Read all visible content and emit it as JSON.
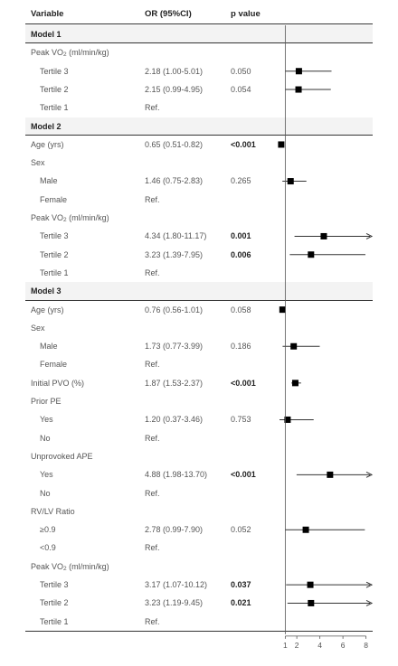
{
  "headers": {
    "variable": "Variable",
    "or": "OR (95%CI)",
    "p": "p value"
  },
  "models": [
    {
      "title": "Model 1",
      "rows": [
        {
          "label": "Peak VO",
          "sub": "2",
          "suffix": " (ml/min/kg)"
        },
        {
          "label": "Tertile 3",
          "indent": true,
          "or": "2.18 (1.00-5.01)",
          "p": "0.050",
          "v": 2.18,
          "lo": 1.0,
          "hi": 5.01
        },
        {
          "label": "Tertile 2",
          "indent": true,
          "or": "2.15 (0.99-4.95)",
          "p": "0.054",
          "v": 2.15,
          "lo": 0.99,
          "hi": 4.95
        },
        {
          "label": "Tertile 1",
          "indent": true,
          "or": "Ref."
        }
      ]
    },
    {
      "title": "Model 2",
      "rows": [
        {
          "label": "Age (yrs)",
          "or": "0.65 (0.51-0.82)",
          "p": "<0.001",
          "sig": true,
          "v": 0.65,
          "lo": 0.51,
          "hi": 0.82
        },
        {
          "label": "Sex"
        },
        {
          "label": "Male",
          "indent": true,
          "or": "1.46 (0.75-2.83)",
          "p": "0.265",
          "v": 1.46,
          "lo": 0.75,
          "hi": 2.83
        },
        {
          "label": "Female",
          "indent": true,
          "or": "Ref."
        },
        {
          "label": "Peak VO",
          "sub": "2",
          "suffix": " (ml/min/kg)"
        },
        {
          "label": "Tertile 3",
          "indent": true,
          "or": "4.34 (1.80-11.17)",
          "p": "0.001",
          "sig": true,
          "v": 4.34,
          "lo": 1.8,
          "hi": 11.17
        },
        {
          "label": "Tertile 2",
          "indent": true,
          "or": "3.23 (1.39-7.95)",
          "p": "0.006",
          "sig": true,
          "v": 3.23,
          "lo": 1.39,
          "hi": 7.95
        },
        {
          "label": "Tertile 1",
          "indent": true,
          "or": "Ref."
        }
      ]
    },
    {
      "title": "Model 3",
      "rows": [
        {
          "label": "Age (yrs)",
          "or": "0.76 (0.56-1.01)",
          "p": "0.058",
          "v": 0.76,
          "lo": 0.56,
          "hi": 1.01
        },
        {
          "label": "Sex"
        },
        {
          "label": "Male",
          "indent": true,
          "or": "1.73 (0.77-3.99)",
          "p": "0.186",
          "v": 1.73,
          "lo": 0.77,
          "hi": 3.99
        },
        {
          "label": "Female",
          "indent": true,
          "or": "Ref."
        },
        {
          "label": "Initial PVO (%)",
          "or": "1.87 (1.53-2.37)",
          "p": "<0.001",
          "sig": true,
          "v": 1.87,
          "lo": 1.53,
          "hi": 2.37
        },
        {
          "label": "Prior PE"
        },
        {
          "label": "Yes",
          "indent": true,
          "or": "1.20 (0.37-3.46)",
          "p": "0.753",
          "v": 1.2,
          "lo": 0.37,
          "hi": 3.46
        },
        {
          "label": "No",
          "indent": true,
          "or": "Ref."
        },
        {
          "label": "Unprovoked APE"
        },
        {
          "label": "Yes",
          "indent": true,
          "or": "4.88 (1.98-13.70)",
          "p": "<0.001",
          "sig": true,
          "v": 4.88,
          "lo": 1.98,
          "hi": 13.7
        },
        {
          "label": "No",
          "indent": true,
          "or": "Ref."
        },
        {
          "label": "RV/LV Ratio"
        },
        {
          "label": "≥0.9",
          "indent": true,
          "or": "2.78 (0.99-7.90)",
          "p": "0.052",
          "v": 2.78,
          "lo": 0.99,
          "hi": 7.9
        },
        {
          "label": "<0.9",
          "indent": true,
          "or": "Ref."
        },
        {
          "label": "Peak VO",
          "sub": "2",
          "suffix": " (ml/min/kg)"
        },
        {
          "label": "Tertile 3",
          "indent": true,
          "or": "3.17 (1.07-10.12)",
          "p": "0.037",
          "sig": true,
          "v": 3.17,
          "lo": 1.07,
          "hi": 10.12
        },
        {
          "label": "Tertile 2",
          "indent": true,
          "or": "3.23 (1.19-9.45)",
          "p": "0.021",
          "sig": true,
          "v": 3.23,
          "lo": 1.19,
          "hi": 9.45
        },
        {
          "label": "Tertile 1",
          "indent": true,
          "or": "Ref."
        }
      ]
    }
  ],
  "chart_data": {
    "type": "forest",
    "x_ticks": [
      1,
      2,
      4,
      6,
      8
    ],
    "xlim": [
      0.5,
      8.5
    ],
    "reference_line": 1,
    "marker_color": "#000000",
    "line_color": "#333333"
  }
}
